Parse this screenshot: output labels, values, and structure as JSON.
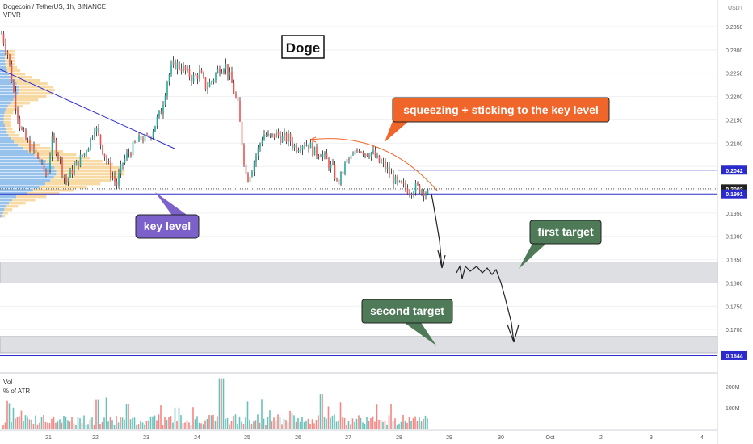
{
  "header": {
    "symbol_line": "Dogecoin / TetherUS, 1h, BINANCE",
    "indicator": "VPVR",
    "currency": "USDT"
  },
  "volume_pane": {
    "title": "Vol",
    "subtitle": "% of ATR",
    "axis_ticks": [
      "200M",
      "100M"
    ]
  },
  "chart_data": {
    "type": "candlestick",
    "title": "Doge",
    "symbol": "DOGEUSDT",
    "timeframe": "1h",
    "exchange": "BINANCE",
    "y_axis_ticks": [
      "0.1650",
      "0.1700",
      "0.1750",
      "0.1800",
      "0.1850",
      "0.1900",
      "0.1950",
      "0.2000",
      "0.2050",
      "0.2100",
      "0.2150",
      "0.2200",
      "0.2250",
      "0.2300",
      "0.2350"
    ],
    "ylim": [
      0.1637,
      0.2398
    ],
    "x_axis_ticks": [
      "21",
      "22",
      "23",
      "24",
      "25",
      "26",
      "27",
      "28",
      "29",
      "30",
      "Oct",
      "2",
      "3",
      "4"
    ],
    "price_labels": [
      {
        "value": "0.2042",
        "style": "blue"
      },
      {
        "value": "0.2002",
        "style": "dark"
      },
      {
        "value": "0.1991",
        "style": "blue"
      },
      {
        "value": "0.1644",
        "style": "blue"
      }
    ],
    "price_path": [
      [
        0,
        0.2335
      ],
      [
        0.5,
        0.229
      ],
      [
        1.0,
        0.22
      ],
      [
        1.5,
        0.213
      ],
      [
        2.0,
        0.21
      ],
      [
        2.5,
        0.2085
      ],
      [
        3.0,
        0.206
      ],
      [
        3.5,
        0.203
      ],
      [
        4.0,
        0.211
      ],
      [
        4.5,
        0.207
      ],
      [
        5.0,
        0.2015
      ],
      [
        5.5,
        0.204
      ],
      [
        6.0,
        0.206
      ],
      [
        6.5,
        0.208
      ],
      [
        7.0,
        0.211
      ],
      [
        7.3,
        0.214
      ],
      [
        7.5,
        0.212
      ],
      [
        8.0,
        0.208
      ],
      [
        8.5,
        0.204
      ],
      [
        9.0,
        0.201
      ],
      [
        9.5,
        0.206
      ],
      [
        10.0,
        0.208
      ],
      [
        10.5,
        0.21
      ],
      [
        11.0,
        0.211
      ],
      [
        11.5,
        0.211
      ],
      [
        12.0,
        0.214
      ],
      [
        12.5,
        0.217
      ],
      [
        13.0,
        0.224
      ],
      [
        13.5,
        0.227
      ],
      [
        14.0,
        0.2265
      ],
      [
        14.5,
        0.225
      ],
      [
        15.0,
        0.224
      ],
      [
        15.5,
        0.225
      ],
      [
        16.0,
        0.222
      ],
      [
        16.5,
        0.2235
      ],
      [
        17.0,
        0.226
      ],
      [
        17.5,
        0.227
      ],
      [
        18.0,
        0.223
      ],
      [
        18.5,
        0.218
      ],
      [
        19.0,
        0.206
      ],
      [
        19.2,
        0.202
      ],
      [
        19.5,
        0.204
      ],
      [
        20.0,
        0.208
      ],
      [
        20.5,
        0.212
      ],
      [
        21.0,
        0.211
      ],
      [
        21.5,
        0.212
      ],
      [
        22.0,
        0.211
      ],
      [
        22.5,
        0.211
      ],
      [
        23.0,
        0.209
      ],
      [
        23.5,
        0.21
      ],
      [
        24.0,
        0.21
      ],
      [
        24.5,
        0.208
      ],
      [
        25.0,
        0.208
      ],
      [
        25.5,
        0.206
      ],
      [
        26.0,
        0.204
      ],
      [
        26.3,
        0.201
      ],
      [
        26.6,
        0.203
      ],
      [
        27.0,
        0.206
      ],
      [
        27.5,
        0.207
      ],
      [
        28.0,
        0.209
      ],
      [
        28.5,
        0.208
      ],
      [
        29.0,
        0.208
      ],
      [
        29.5,
        0.206
      ],
      [
        30.0,
        0.205
      ],
      [
        30.5,
        0.203
      ],
      [
        31.0,
        0.201
      ],
      [
        31.5,
        0.2005
      ],
      [
        32.0,
        0.2
      ],
      [
        32.5,
        0.2005
      ],
      [
        33.0,
        0.2
      ],
      [
        33.4,
        0.199
      ]
    ],
    "horizontal_lines": [
      {
        "name": "resistance",
        "price": 0.2042,
        "color": "#2b2bcc"
      },
      {
        "name": "key-level",
        "price": 0.1991,
        "color": "#2b2bcc"
      },
      {
        "name": "last-price",
        "price": 0.2002,
        "color": "#555555",
        "style": "dotted"
      },
      {
        "name": "low-line",
        "price": 0.1644,
        "color": "#2b2bcc"
      }
    ],
    "zones": [
      {
        "name": "first-target-zone",
        "from": 0.18,
        "to": 0.1845
      },
      {
        "name": "second-target-zone",
        "from": 0.165,
        "to": 0.1685
      }
    ],
    "annotations": [
      {
        "name": "squeezing-label",
        "text": "squeezing + sticking to the key level",
        "color": "#f06529"
      },
      {
        "name": "key-level-label",
        "text": "key level",
        "color": "#7b61c9"
      },
      {
        "name": "first-target-label",
        "text": "first target",
        "color": "#4e7a57"
      },
      {
        "name": "second-target-label",
        "text": "second target",
        "color": "#4e7a57"
      }
    ],
    "volume_ylim": [
      0,
      250
    ],
    "volume_ticks_values": [
      200,
      100
    ]
  }
}
